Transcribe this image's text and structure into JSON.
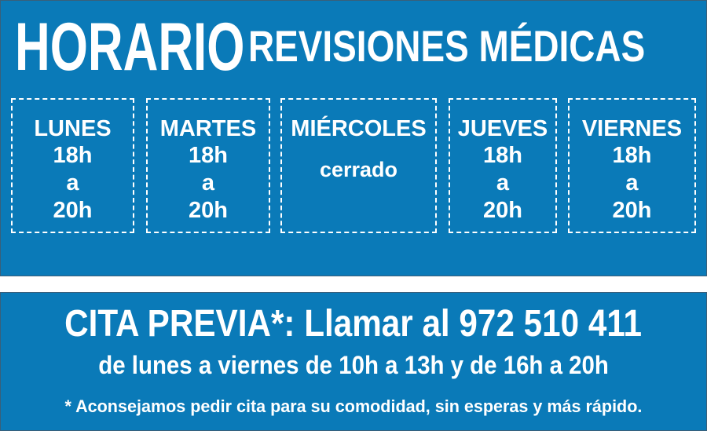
{
  "colors": {
    "background": "#0a7ab8",
    "text": "#ffffff"
  },
  "header": {
    "title_main": "HORARIO",
    "title_sub": "REVISIONES MÉDICAS"
  },
  "days": [
    {
      "name": "LUNES",
      "from": "18h",
      "sep": "a",
      "to": "20h"
    },
    {
      "name": "MARTES",
      "from": "18h",
      "sep": "a",
      "to": "20h"
    },
    {
      "name": "MIÉRCOLES",
      "status": "cerrado"
    },
    {
      "name": "JUEVES",
      "from": "18h",
      "sep": "a",
      "to": "20h"
    },
    {
      "name": "VIERNES",
      "from": "18h",
      "sep": "a",
      "to": "20h"
    }
  ],
  "appointment": {
    "headline": "CITA PREVIA*: Llamar al 972 510 411",
    "hours": "de lunes a viernes de 10h a 13h y de 16h a 20h",
    "note": "* Aconsejamos pedir cita para su comodidad, sin esperas y más rápido."
  }
}
